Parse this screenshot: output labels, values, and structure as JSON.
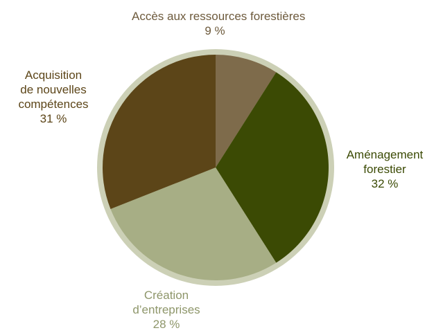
{
  "chart_data": {
    "type": "pie",
    "title": "",
    "slices": [
      {
        "label_lines": [
          "Accès aux ressources forestières"
        ],
        "pct_text": "9 %",
        "value": 9,
        "color": "#7e6b4b",
        "label_color": "#6d5a3c"
      },
      {
        "label_lines": [
          "Aménagement",
          "forestier"
        ],
        "pct_text": "32 %",
        "value": 32,
        "color": "#3b4a04",
        "label_color": "#3b4a04"
      },
      {
        "label_lines": [
          "Création",
          "d’entreprises"
        ],
        "pct_text": "28 %",
        "value": 28,
        "color": "#a7ae85",
        "label_color": "#8e966a"
      },
      {
        "label_lines": [
          "Acquisition",
          "de nouvelles",
          "compétences"
        ],
        "pct_text": "31 %",
        "value": 31,
        "color": "#5c4518",
        "label_color": "#5c4518"
      }
    ],
    "ring_color": "#ccd0b6"
  }
}
